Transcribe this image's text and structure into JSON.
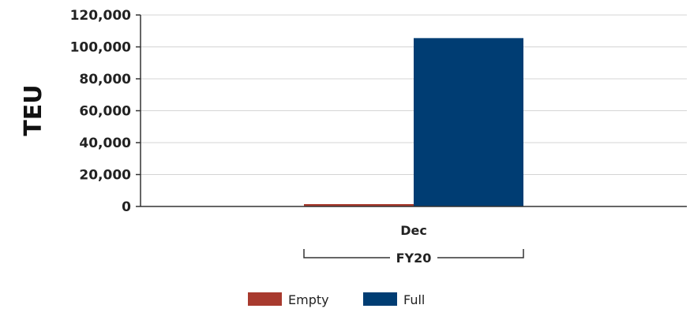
{
  "chart_data": {
    "type": "bar",
    "ylabel": "TEU",
    "xlabel": "",
    "ylim": [
      0,
      120000
    ],
    "yticks": [
      "0",
      "20,000",
      "40,000",
      "60,000",
      "80,000",
      "100,000",
      "120,000"
    ],
    "yticks_values": [
      0,
      20000,
      40000,
      60000,
      80000,
      100000,
      120000
    ],
    "categories": [
      "Dec"
    ],
    "group_label": "FY20",
    "grid": true,
    "legend_position": "bottom",
    "series": [
      {
        "name": "Empty",
        "color": "#a83a2e",
        "values": [
          1000
        ]
      },
      {
        "name": "Full",
        "color": "#003d73",
        "values": [
          105500
        ]
      }
    ]
  }
}
